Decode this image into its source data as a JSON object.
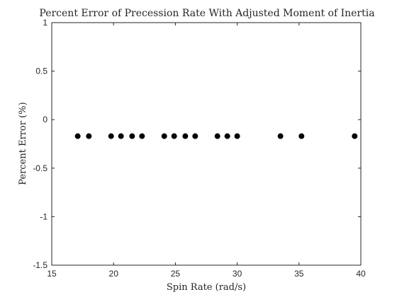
{
  "chart_data": {
    "type": "scatter",
    "title": "Percent Error of Precession Rate With Adjusted Moment of Inertia",
    "xlabel": "Spin Rate (rad/s)",
    "ylabel": "Percent Error (%)",
    "xlim": [
      15,
      40
    ],
    "ylim": [
      -1.5,
      1
    ],
    "xticks": [
      15,
      20,
      25,
      30,
      35,
      40
    ],
    "yticks": [
      -1.5,
      -1,
      -0.5,
      0,
      0.5,
      1
    ],
    "xtick_labels": [
      "15",
      "20",
      "25",
      "30",
      "35",
      "40"
    ],
    "ytick_labels": [
      "-1.5",
      "-1",
      "-0.5",
      "0",
      "0.5",
      "1"
    ],
    "grid": false,
    "series": [
      {
        "marker_color": "#000000",
        "points": [
          {
            "x": 17.1,
            "y": -0.17
          },
          {
            "x": 18.0,
            "y": -0.17
          },
          {
            "x": 19.8,
            "y": -0.17
          },
          {
            "x": 20.6,
            "y": -0.17
          },
          {
            "x": 21.5,
            "y": -0.17
          },
          {
            "x": 22.3,
            "y": -0.17
          },
          {
            "x": 24.1,
            "y": -0.17
          },
          {
            "x": 24.9,
            "y": -0.17
          },
          {
            "x": 25.8,
            "y": -0.17
          },
          {
            "x": 26.6,
            "y": -0.17
          },
          {
            "x": 28.4,
            "y": -0.17
          },
          {
            "x": 29.2,
            "y": -0.17
          },
          {
            "x": 30.0,
            "y": -0.17
          },
          {
            "x": 33.5,
            "y": -0.17
          },
          {
            "x": 35.2,
            "y": -0.17
          },
          {
            "x": 39.5,
            "y": -0.17
          }
        ]
      }
    ]
  }
}
